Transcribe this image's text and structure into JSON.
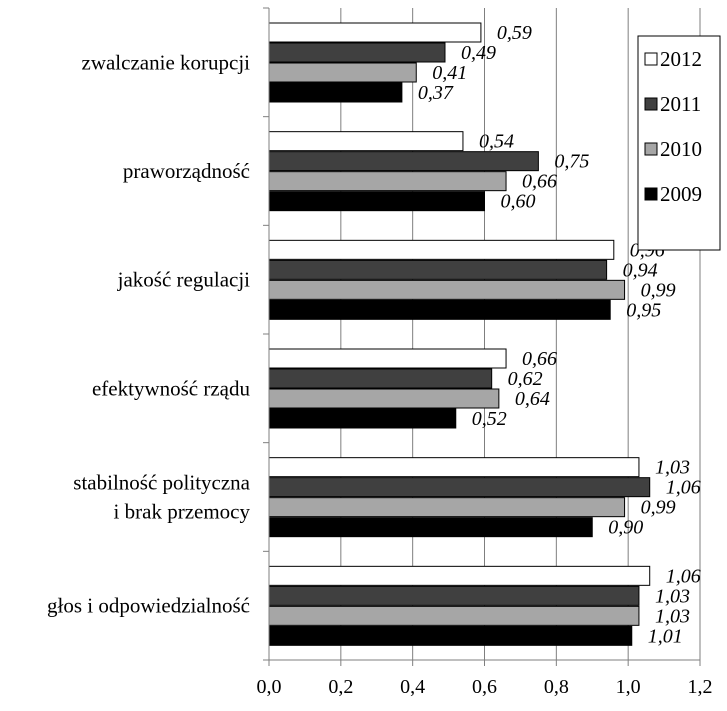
{
  "chart_data": {
    "type": "bar",
    "orientation": "horizontal",
    "title": "",
    "xlabel": "",
    "ylabel": "",
    "categories": [
      [
        "zwalczanie korupcji"
      ],
      [
        "praworządność"
      ],
      [
        "jakość regulacji"
      ],
      [
        "efektywność rządu"
      ],
      [
        "stabilność polityczna",
        "i brak przemocy"
      ],
      [
        "głos i odpowiedzialność"
      ]
    ],
    "series": [
      {
        "name": "2012",
        "color": "#ffffff",
        "values": [
          0.59,
          0.54,
          0.96,
          0.66,
          1.03,
          1.06
        ],
        "labels": [
          "0,59",
          "0,54",
          "0,96",
          "0,66",
          "1,03",
          "1,06"
        ]
      },
      {
        "name": "2011",
        "color": "#404040",
        "values": [
          0.49,
          0.75,
          0.94,
          0.62,
          1.06,
          1.03
        ],
        "labels": [
          "0,49",
          "0,75",
          "0,94",
          "0,62",
          "1,06",
          "1,03"
        ]
      },
      {
        "name": "2010",
        "color": "#a6a6a6",
        "values": [
          0.41,
          0.66,
          0.99,
          0.64,
          0.99,
          1.03
        ],
        "labels": [
          "0,41",
          "0,66",
          "0,99",
          "0,64",
          "0,99",
          "1,03"
        ]
      },
      {
        "name": "2009",
        "color": "#000000",
        "values": [
          0.37,
          0.6,
          0.95,
          0.52,
          0.9,
          1.01
        ],
        "labels": [
          "0,37",
          "0,60",
          "0,95",
          "0,52",
          "0,90",
          "1,01"
        ]
      }
    ],
    "xlim": [
      0,
      1.2
    ],
    "x_ticks": [
      0,
      0.2,
      0.4,
      0.6,
      0.8,
      1.0,
      1.2
    ],
    "x_tick_labels": [
      "0,0",
      "0,2",
      "0,4",
      "0,6",
      "0,8",
      "1,0",
      "1,2"
    ],
    "grid": "vertical",
    "legend": {
      "position": "right",
      "entries": [
        "2012",
        "2011",
        "2010",
        "2009"
      ]
    }
  }
}
